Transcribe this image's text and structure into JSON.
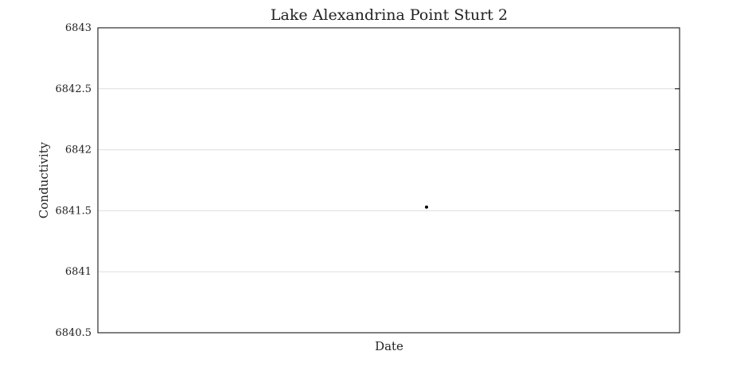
{
  "chart_data": {
    "type": "scatter",
    "title": "Lake Alexandrina Point Sturt 2",
    "xlabel": "Date",
    "ylabel": "Conductivity",
    "ylim": [
      6840.5,
      6843
    ],
    "yticks": [
      6840.5,
      6841,
      6841.5,
      6842,
      6842.5,
      6843
    ],
    "ytick_labels": [
      "6840.5",
      "6841",
      "6841.5",
      "6842",
      "6842.5",
      "6843"
    ],
    "grid": true,
    "series": [
      {
        "points": [
          {
            "y": 6841.53
          }
        ]
      }
    ],
    "colors": {
      "point": "#000000",
      "grid": "#dddddd",
      "axis": "#000000"
    }
  }
}
